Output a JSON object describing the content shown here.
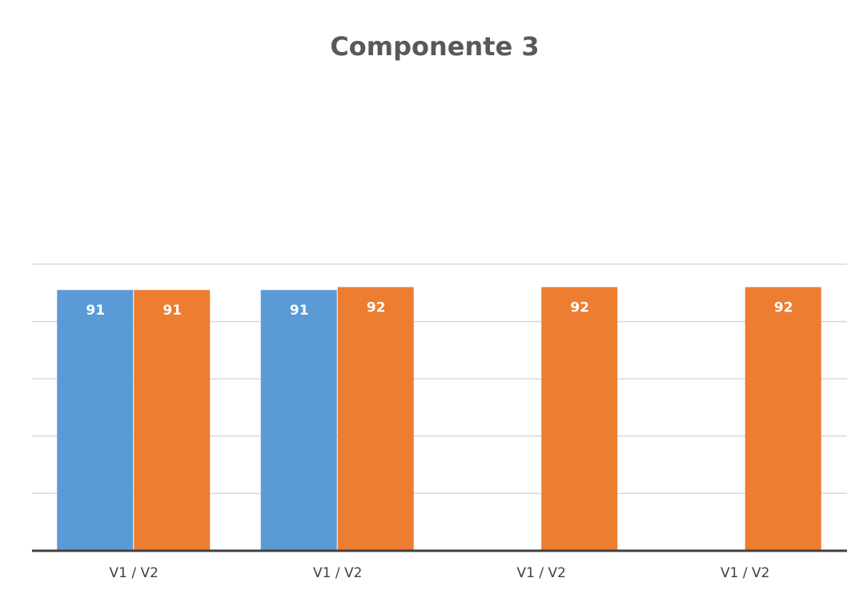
{
  "chart_data": {
    "type": "bar",
    "title": "Componente 3",
    "categories": [
      "V1 / V2",
      "V1 / V2",
      "V1 / V2",
      "V1 / V2"
    ],
    "series": [
      {
        "color": "#5b9bd5",
        "values": [
          91,
          91,
          null,
          null
        ]
      },
      {
        "color": "#ed7d31",
        "values": [
          91,
          92,
          92,
          92
        ]
      }
    ],
    "ylim": [
      0,
      100
    ],
    "yticks": [
      0,
      20,
      40,
      60,
      80,
      100
    ],
    "grid": true
  }
}
